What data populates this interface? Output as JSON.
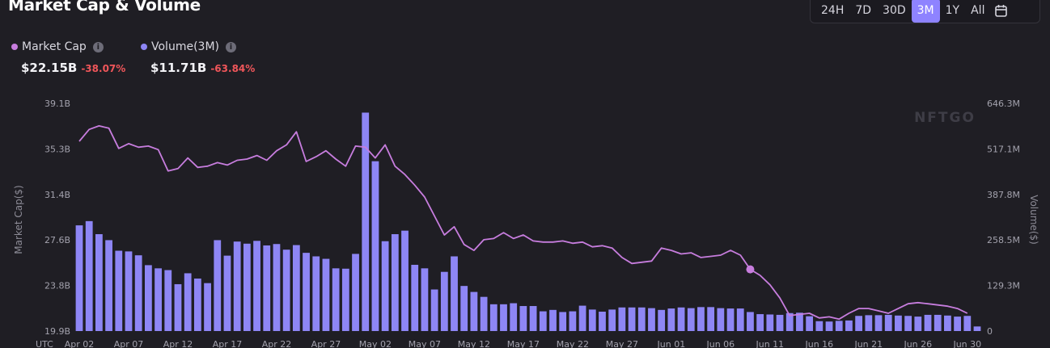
{
  "header": {
    "title": "Market Cap & Volume"
  },
  "range_buttons": [
    {
      "label": "24H"
    },
    {
      "label": "7D"
    },
    {
      "label": "30D"
    },
    {
      "label": "3M",
      "active": true
    },
    {
      "label": "1Y"
    },
    {
      "label": "All"
    }
  ],
  "legend": {
    "market_cap": {
      "label": "Market Cap",
      "value": "$22.15B",
      "change": "-38.07%",
      "color": "#c77dde"
    },
    "volume": {
      "label": "Volume(3M)",
      "value": "$11.71B",
      "change": "-63.84%",
      "color": "#8e86f5"
    }
  },
  "watermark": "NFTGO",
  "chart_data": {
    "type": "bar+line",
    "x_start_label": "UTC",
    "x_ticks": [
      "Apr 02",
      "Apr 07",
      "Apr 12",
      "Apr 17",
      "Apr 22",
      "Apr 27",
      "May 02",
      "May 07",
      "May 12",
      "May 17",
      "May 22",
      "May 27",
      "Jun 01",
      "Jun 06",
      "Jun 11",
      "Jun 16",
      "Jun 21",
      "Jun 26",
      "Jun 30"
    ],
    "y_left": {
      "label": "Market Cap($)",
      "ticks": [
        "39.1B",
        "35.3B",
        "31.4B",
        "27.6B",
        "23.8B",
        "19.9B"
      ],
      "range": [
        19.9,
        39.1
      ]
    },
    "y_right": {
      "label": "Volume($)",
      "ticks": [
        "646.3M",
        "517.1M",
        "387.8M",
        "258.5M",
        "129.3M",
        "0"
      ],
      "range": [
        0,
        646.3
      ]
    },
    "series": [
      {
        "name": "Market Cap",
        "unit": "B",
        "type": "line",
        "values": [
          35.9,
          36.9,
          37.2,
          37.0,
          35.3,
          35.7,
          35.4,
          35.5,
          35.2,
          33.4,
          33.6,
          34.5,
          33.7,
          33.8,
          34.1,
          33.9,
          34.3,
          34.4,
          34.7,
          34.3,
          35.1,
          35.6,
          36.7,
          34.2,
          34.6,
          35.1,
          34.4,
          33.8,
          35.5,
          35.4,
          34.5,
          35.6,
          33.8,
          33.1,
          32.2,
          31.2,
          29.6,
          28.0,
          28.7,
          27.2,
          26.7,
          27.6,
          27.7,
          28.2,
          27.7,
          28.0,
          27.5,
          27.4,
          27.4,
          27.5,
          27.3,
          27.4,
          27.0,
          27.1,
          26.9,
          26.1,
          25.6,
          25.7,
          25.8,
          26.9,
          26.7,
          26.4,
          26.5,
          26.1,
          26.2,
          26.3,
          26.7,
          26.3,
          25.1,
          24.6,
          23.8,
          22.7,
          21.2,
          21.3,
          21.4,
          21.0,
          21.1,
          20.9,
          21.4,
          21.8,
          21.8,
          21.6,
          21.4,
          21.8,
          22.2,
          22.3,
          22.2,
          22.1,
          22.0,
          21.8,
          21.4
        ],
        "marker_index": 68
      },
      {
        "name": "Volume(3M)",
        "unit": "M",
        "type": "bar",
        "values": [
          300,
          312,
          275,
          258,
          228,
          226,
          215,
          187,
          178,
          173,
          133,
          164,
          149,
          136,
          258,
          214,
          254,
          248,
          256,
          243,
          247,
          231,
          244,
          222,
          212,
          205,
          178,
          177,
          219,
          620,
          482,
          255,
          275,
          285,
          188,
          178,
          118,
          168,
          212,
          128,
          111,
          97,
          76,
          76,
          79,
          71,
          71,
          56,
          60,
          54,
          56,
          72,
          61,
          55,
          61,
          67,
          67,
          67,
          65,
          60,
          64,
          67,
          65,
          68,
          68,
          65,
          64,
          64,
          54,
          48,
          47,
          46,
          51,
          52,
          42,
          28,
          27,
          29,
          30,
          43,
          45,
          45,
          46,
          44,
          43,
          41,
          46,
          46,
          44,
          41,
          43,
          13
        ]
      }
    ]
  }
}
